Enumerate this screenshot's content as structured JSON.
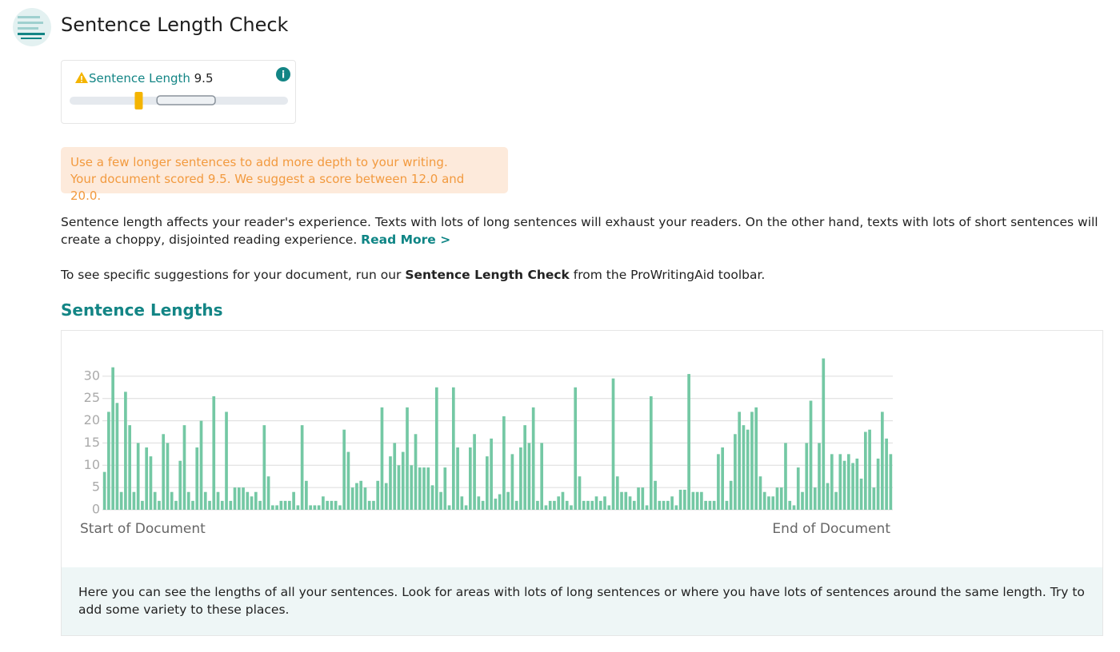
{
  "header": {
    "title": "Sentence Length Check"
  },
  "score_card": {
    "label": "Sentence Length",
    "score": 9.5,
    "scale": [
      0,
      30
    ],
    "suggested_range": [
      12,
      20
    ]
  },
  "message": {
    "lines": [
      "Use a few longer sentences to add more depth to your writing.",
      "Your document scored 9.5. We suggest a score between 12.0 and 20.0."
    ]
  },
  "intro": {
    "text": "Sentence length affects your reader's experience. Texts with lots of long sentences will exhaust your readers. On the other hand, texts with lots of short sentences will create a choppy, disjointed reading experience. ",
    "link": "Read More >"
  },
  "instruction": {
    "before": "To see specific suggestions for your document, run our ",
    "bold": "Sentence Length Check",
    "after": " from the ProWritingAid toolbar."
  },
  "chart_data": {
    "type": "bar",
    "title": "Sentence Lengths",
    "color": "#74c8a4",
    "x_start_label": "Start of Document",
    "x_end_label": "End of Document",
    "values": [
      8.5,
      22,
      32,
      24,
      4,
      26.5,
      19,
      4,
      15,
      2,
      14,
      12,
      4,
      2,
      17,
      15,
      4,
      2,
      11,
      19,
      4,
      2,
      14,
      20,
      4,
      2,
      25.5,
      4,
      2,
      22,
      2,
      5,
      5,
      5,
      4,
      3,
      4,
      2,
      19,
      7.5,
      1,
      1,
      2,
      2,
      2,
      4,
      1,
      19,
      6.5,
      1,
      1,
      1,
      3,
      2,
      2,
      2,
      1,
      18,
      13,
      5,
      6,
      6.5,
      5,
      2,
      2,
      6.5,
      23,
      6,
      12,
      15,
      10,
      13,
      23,
      10,
      17,
      9.5,
      9.5,
      9.5,
      5.5,
      27.5,
      4,
      9.5,
      1,
      27.5,
      14,
      3,
      1,
      14,
      17,
      3,
      2,
      12,
      16,
      2.5,
      3.5,
      21,
      4,
      12.5,
      2,
      14,
      19,
      15,
      23,
      2,
      15,
      1,
      2,
      2,
      3,
      4,
      2,
      1,
      27.5,
      7.5,
      2,
      2,
      2,
      3,
      2,
      3,
      1,
      29.5,
      7.5,
      4,
      4,
      3,
      2,
      5,
      5,
      1,
      25.5,
      6.5,
      2,
      2,
      2,
      3,
      1,
      4.5,
      4.5,
      30.5,
      4,
      4,
      4,
      2,
      2,
      2,
      12.5,
      14,
      2,
      6.5,
      17,
      22,
      19,
      18,
      22,
      23,
      7.5,
      4,
      3,
      3,
      5,
      5,
      15,
      2,
      1,
      9.5,
      4,
      15,
      24.5,
      5,
      15,
      34,
      6,
      12.5,
      4,
      12.5,
      11,
      12.5,
      10.5,
      11.5,
      7,
      17.5,
      18,
      5,
      11.5,
      22,
      16,
      12.5
    ],
    "ylim": [
      0,
      35
    ],
    "yticks": [
      0,
      5,
      10,
      15,
      20,
      25,
      30
    ],
    "grid": true,
    "note": "Here you can see the lengths of all your sentences. Look for areas with lots of long sentences or where you have lots of sentences around the same length. Try to add some variety to these places."
  }
}
